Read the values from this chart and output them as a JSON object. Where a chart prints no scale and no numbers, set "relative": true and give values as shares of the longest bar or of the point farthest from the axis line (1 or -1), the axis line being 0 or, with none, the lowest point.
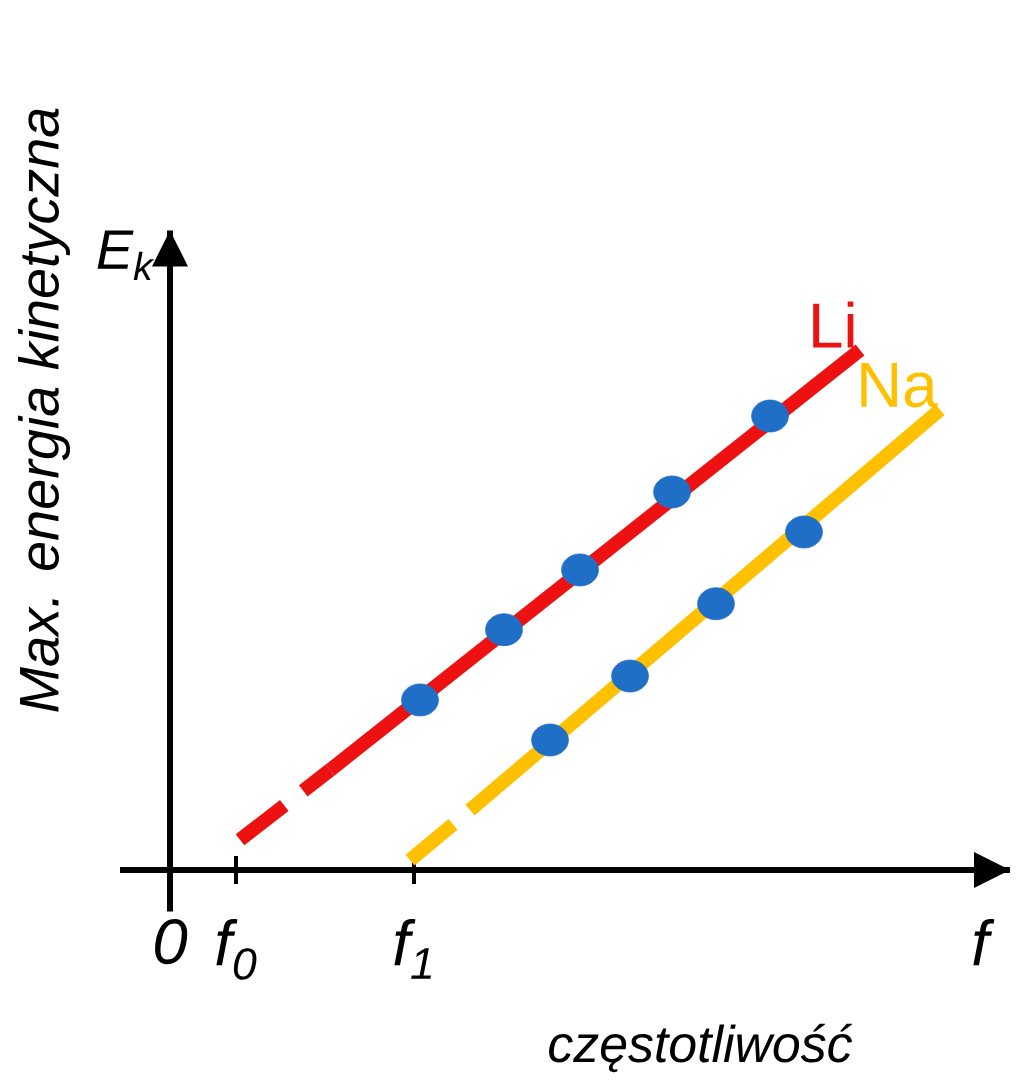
{
  "chart_data": {
    "type": "line",
    "relative": true,
    "xlabel": "częstotliwość",
    "ylabel": "Max. energia kinetyczna",
    "annotations": [
      "E$_{k}$"
    ],
    "tick_labels": "x",
    "legend": false,
    "xlim": [
      -0.25,
      4.2
    ],
    "xticks": [
      {
        "value": 0,
        "label": "0"
      },
      {
        "value": 0.33,
        "label": "f$_{0}$"
      },
      {
        "value": 1.22,
        "label": "f$_{1}$"
      },
      {
        "value": 4.05,
        "label": "f"
      }
    ],
    "series": [
      {
        "color": "#ee1111",
        "line_style": "dashed",
        "marker": "none",
        "x": [
          0.35,
          0.8
        ],
        "values": [
          0.058,
          0.192
        ]
      },
      {
        "name": "Li",
        "color": "#ee1111",
        "line_style": "solid",
        "marker": "none",
        "x": [
          0.8,
          3.45
        ],
        "values": [
          0.192,
          1
        ]
      },
      {
        "type": "scatter",
        "color": "#1f6fc6",
        "marker": "circle",
        "x": [
          1.25,
          1.67,
          2.05,
          2.51,
          3.0
        ],
        "values": [
          0.327,
          0.462,
          0.577,
          0.727,
          0.873
        ]
      },
      {
        "color": "#ffc000",
        "line_style": "dashed",
        "marker": "none",
        "x": [
          1.2,
          1.5
        ],
        "values": [
          0.019,
          0.115
        ]
      },
      {
        "name": "Na",
        "color": "#ffc000",
        "line_style": "solid",
        "marker": "none",
        "x": [
          1.5,
          3.85
        ],
        "values": [
          0.115,
          0.885
        ]
      },
      {
        "type": "scatter",
        "color": "#1f6fc6",
        "marker": "circle",
        "x": [
          1.9,
          2.3,
          2.73,
          3.17
        ],
        "values": [
          0.25,
          0.373,
          0.512,
          0.65
        ]
      }
    ]
  }
}
